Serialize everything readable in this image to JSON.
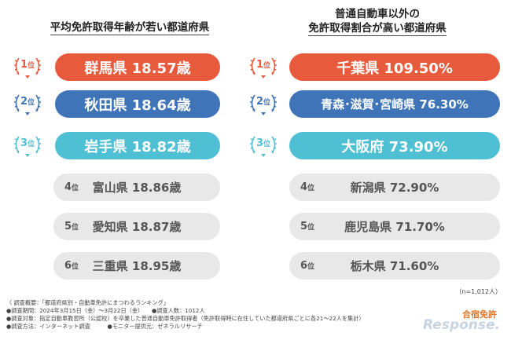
{
  "colors": {
    "first": "#e85a3c",
    "second": "#3f74b8",
    "third": "#4fc0d4",
    "gray_pill": "#e8e8e8"
  },
  "left": {
    "title": "平均免許取得年齢が若い都道府県",
    "items": [
      {
        "rank_num": "1",
        "rank_suffix": "位",
        "label": "群馬県 18.57歳"
      },
      {
        "rank_num": "2",
        "rank_suffix": "位",
        "label": "秋田県 18.64歳"
      },
      {
        "rank_num": "3",
        "rank_suffix": "位",
        "label": "岩手県 18.82歳"
      },
      {
        "rank_num": "4",
        "rank_suffix": "位",
        "label": "富山県 18.86歳"
      },
      {
        "rank_num": "5",
        "rank_suffix": "位",
        "label": "愛知県 18.87歳"
      },
      {
        "rank_num": "6",
        "rank_suffix": "位",
        "label": "三重県 18.95歳"
      }
    ]
  },
  "right": {
    "title_line1": "普通自動車以外の",
    "title_line2": "免許取得割合が高い都道府県",
    "items": [
      {
        "rank_num": "1",
        "rank_suffix": "位",
        "label": "千葉県 109.50%"
      },
      {
        "rank_num": "2",
        "rank_suffix": "位",
        "label": "青森･滋賀･宮崎県 76.30%"
      },
      {
        "rank_num": "3",
        "rank_suffix": "位",
        "label": "大阪府 73.90%"
      },
      {
        "rank_num": "4",
        "rank_suffix": "位",
        "label": "新潟県 72.90%"
      },
      {
        "rank_num": "5",
        "rank_suffix": "位",
        "label": "鹿児島県 71.70%"
      },
      {
        "rank_num": "6",
        "rank_suffix": "位",
        "label": "栃木県 71.60%"
      }
    ]
  },
  "chart_data": [
    {
      "type": "table",
      "title": "平均免許取得年齢が若い都道府県",
      "categories": [
        "群馬県",
        "秋田県",
        "岩手県",
        "富山県",
        "愛知県",
        "三重県"
      ],
      "values": [
        18.57,
        18.64,
        18.82,
        18.86,
        18.87,
        18.95
      ],
      "unit": "歳"
    },
    {
      "type": "table",
      "title": "普通自動車以外の免許取得割合が高い都道府県",
      "categories": [
        "千葉県",
        "青森･滋賀･宮崎県",
        "大阪府",
        "新潟県",
        "鹿児島県",
        "栃木県"
      ],
      "values": [
        109.5,
        76.3,
        73.9,
        72.9,
        71.7,
        71.6
      ],
      "unit": "%"
    }
  ],
  "sample_note": "（n=1,012人）",
  "footer": {
    "line1": "〈 調査概要：「都道府県別・自動車免許にまつわるランキング」",
    "line2": "●調査期間：2024年3月15日（金）～3月22日（金）　　●調査人数：1012人",
    "line3": "●調査対象：指定自動車教習所（公認校）を卒業した普通自動車免許取得者（免許取得時に在住していた都道府県ごとに各21～22人を集計）",
    "line4": "●調査方法：インターネット調査　　　●モニター提供元：ゼネラルリサーチ"
  },
  "logo_text": "合宿免許",
  "watermark": "Response."
}
